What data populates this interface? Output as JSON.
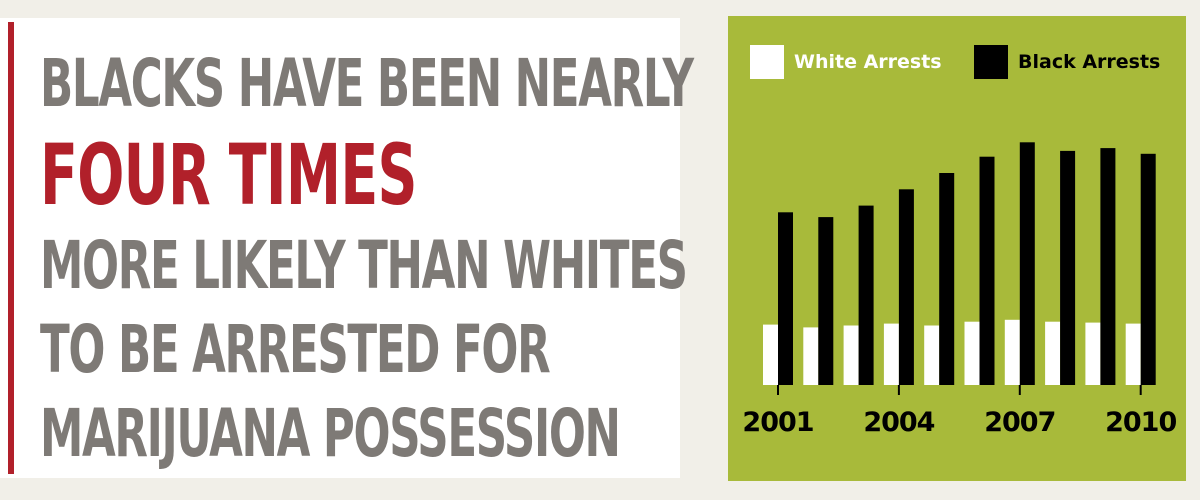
{
  "headline": {
    "line1": "BLACKS HAVE BEEN NEARLY",
    "emphasis": "FOUR TIMES",
    "line3": "MORE LIKELY THAN WHITES",
    "line4": "TO BE ARRESTED FOR",
    "line5": "MARIJUANA POSSESSION"
  },
  "colors": {
    "accent_red": "#b1202a",
    "headline_gray": "#7e7a76",
    "chart_background": "#a8ba3a",
    "page_background": "#f1efe8"
  },
  "chart_data": {
    "type": "bar",
    "title": "",
    "xlabel": "",
    "ylabel": "",
    "categories": [
      "2001",
      "2002",
      "2003",
      "2004",
      "2005",
      "2006",
      "2007",
      "2008",
      "2009",
      "2010"
    ],
    "tick_labels": [
      "2001",
      "2004",
      "2007",
      "2010"
    ],
    "series": [
      {
        "name": "White Arrests",
        "color": "#ffffff",
        "values": [
          63,
          60,
          62,
          64,
          62,
          66,
          68,
          66,
          65,
          64
        ]
      },
      {
        "name": "Black Arrests",
        "color": "#000000",
        "values": [
          180,
          175,
          187,
          204,
          221,
          238,
          253,
          244,
          247,
          241
        ]
      }
    ],
    "ylim": [
      0,
      270
    ],
    "grid": false,
    "legend_position": "top"
  }
}
